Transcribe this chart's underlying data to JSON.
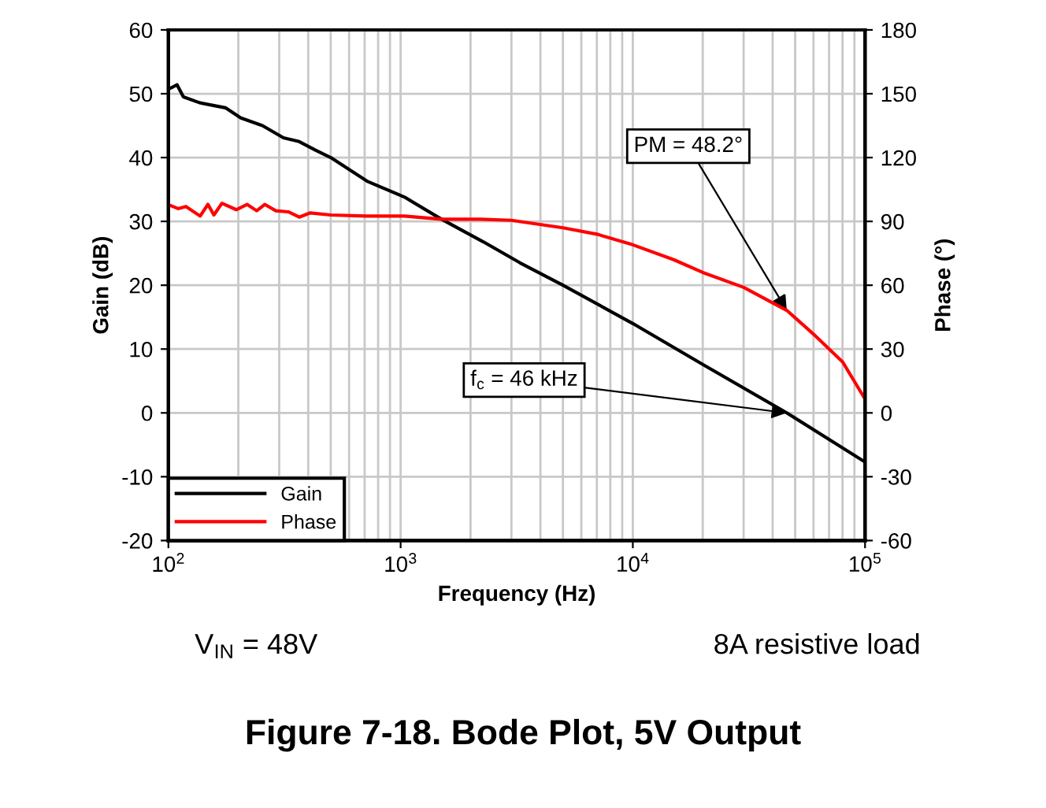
{
  "chart_data": {
    "type": "line",
    "title": "Figure 7-18. Bode Plot, 5V Output",
    "xlabel": "Frequency (Hz)",
    "ylabel": "Gain (dB)",
    "y2label": "Phase (°)",
    "log": "x",
    "xlim": [
      100,
      100000
    ],
    "xticks": [
      {
        "value": 100,
        "label": "10$^{2}$"
      },
      {
        "value": 1000,
        "label": "10$^{3}$"
      },
      {
        "value": 10000,
        "label": "10$^{4}$"
      },
      {
        "value": 100000,
        "label": "10$^{5}$"
      }
    ],
    "ylim": [
      -20,
      60
    ],
    "yticks": [
      -20,
      -10,
      0,
      10,
      20,
      30,
      40,
      50,
      60
    ],
    "y2lim": [
      -60,
      180
    ],
    "y2ticks": [
      -60,
      -30,
      0,
      30,
      60,
      90,
      120,
      150,
      180
    ],
    "grid": true,
    "legend": "bottom left",
    "series": [
      {
        "name": "Gain",
        "color": "#000000",
        "x": [
          100,
          109,
          116,
          136,
          159,
          176,
          205,
          254,
          313,
          366,
          428,
          500,
          717,
          1040,
          1490,
          2270,
          3270,
          5000,
          10000,
          20000,
          46000,
          100000
        ],
        "values": [
          50.7,
          51.4,
          49.5,
          48.6,
          48.1,
          47.8,
          46.2,
          45,
          43.1,
          42.5,
          41.2,
          40,
          36.3,
          33.8,
          30.4,
          26.8,
          23.5,
          20,
          14,
          7.6,
          0,
          -7.7
        ]
      },
      {
        "name": "Phase",
        "color": "#ff0000",
        "axis": "y2",
        "x": [
          100,
          102,
          110,
          119,
          137,
          148,
          157,
          170,
          196,
          218,
          240,
          260,
          290,
          328,
          366,
          408,
          500,
          715,
          1040,
          1500,
          2200,
          3000,
          5000,
          7000,
          10000,
          15000,
          20000,
          30000,
          46000,
          60000,
          80000,
          100000
        ],
        "values": [
          97,
          97.5,
          96,
          97,
          92.5,
          98,
          93,
          98.5,
          95.5,
          98,
          95,
          98,
          95,
          94.5,
          92,
          94,
          93,
          92.5,
          92.5,
          91,
          91,
          90.5,
          87,
          84,
          79,
          72,
          66,
          59,
          48.2,
          37,
          24,
          6.5
        ]
      }
    ],
    "annotations": [
      {
        "text": "PM = 48.2°",
        "x": 46000,
        "y": 16.07
      },
      {
        "text": "f$_{c}$ = 46 kHz",
        "x": 46000,
        "y": 0
      },
      "V$_{IN}$ = 48V",
      "8A resistive load"
    ]
  }
}
